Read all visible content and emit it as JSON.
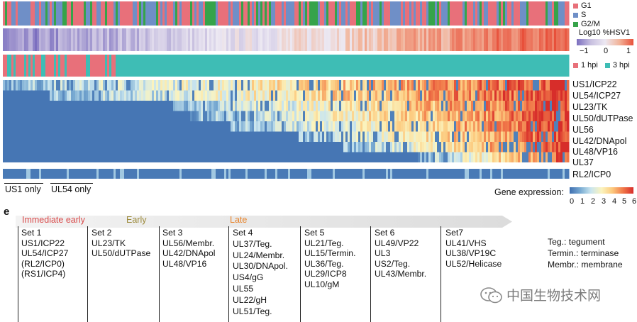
{
  "figure": {
    "panel_label": "e",
    "strips": {
      "cell_cycle": {
        "legend": [
          {
            "label": "G1",
            "color": "#e8707a"
          },
          {
            "label": "S",
            "color": "#6f8fc7"
          },
          {
            "label": "G2/M",
            "color": "#36a34a"
          }
        ]
      },
      "hsv": {
        "title": "Log10 %HSV1",
        "ticks": [
          "−1",
          "0",
          "1"
        ],
        "colors": [
          "#7b6fbf",
          "#ece8f2",
          "#e8503a"
        ]
      },
      "time": {
        "legend": [
          {
            "label": "1 hpi",
            "color": "#e8707a"
          },
          {
            "label": "3 hpi",
            "color": "#3ebdb5"
          }
        ]
      }
    },
    "genes": [
      "US1/ICP22",
      "UL54/ICP27",
      "UL23/TK",
      "UL50/dUTPase",
      "UL56",
      "UL42/DNApol",
      "UL48/VP16",
      "UL37"
    ],
    "extra_gene": "RL2/ICP0",
    "bottom_labels": [
      "US1 only",
      "UL54 only"
    ],
    "gene_expression": {
      "label": "Gene expression:",
      "ticks": [
        "0",
        "1",
        "2",
        "3",
        "4",
        "5",
        "6"
      ]
    },
    "kinetics": {
      "immediate_early": "Immediate early",
      "early": "Early",
      "late": "Late"
    },
    "kinetic_colors": {
      "immediate_early": "#d94b4b",
      "early": "#9c8a3a",
      "late": "#e8832a"
    },
    "sets": [
      {
        "title": "Set 1",
        "items": [
          "US1/ICP22",
          "UL54/ICP27",
          "(RL2/ICP0)",
          "(RS1/ICP4)"
        ]
      },
      {
        "title": "Set 2",
        "items": [
          "UL23/TK",
          "UL50/dUTPase"
        ]
      },
      {
        "title": "Set 3",
        "items": [
          "UL56/Membr.",
          "UL42/DNApol",
          "UL48/VP16"
        ]
      },
      {
        "title": "Set 4",
        "items": [
          "UL37/Teg.",
          "UL24/Membr.",
          "UL30/DNApol.",
          "US4/gG",
          "UL55",
          "UL22/gH",
          "UL51/Teg."
        ]
      },
      {
        "title": "Set 5",
        "items": [
          "UL21/Teg.",
          "UL15/Termin.",
          "UL36/Teg.",
          "UL29/ICP8",
          "UL10/gM"
        ]
      },
      {
        "title": "Set 6",
        "items": [
          "UL49/VP22",
          "UL3",
          "US2/Teg.",
          "UL43/Membr."
        ]
      },
      {
        "title": "Set7",
        "items": [
          "UL41/VHS",
          "UL38/VP19C",
          "UL52/Helicase"
        ]
      }
    ],
    "abbreviations": [
      "Teg.: tegument",
      "Termin.: terminase",
      "Membr.: membrane"
    ],
    "watermark": "中国生物技术网"
  }
}
